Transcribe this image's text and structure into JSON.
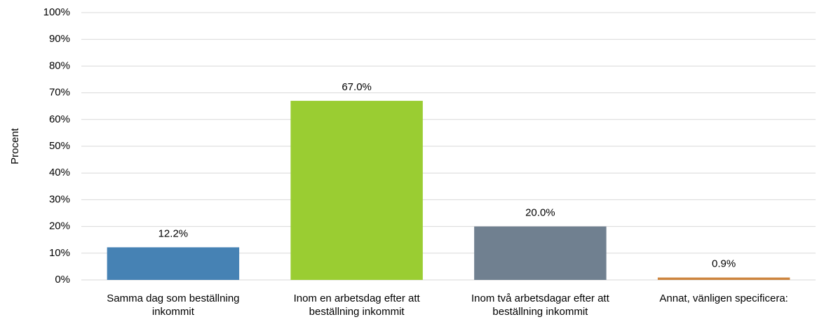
{
  "chart_data": {
    "type": "bar",
    "y_label": "Procent",
    "categories": [
      "Samma dag som beställning inkommit",
      "Inom en arbetsdag efter att beställning inkommit",
      "Inom två arbetsdagar efter att beställning inkommit",
      "Annat, vänligen specificera:"
    ],
    "values": [
      12.2,
      67.0,
      20.0,
      0.9
    ],
    "value_labels": [
      "12.2%",
      "67.0%",
      "20.0%",
      "0.9%"
    ],
    "colors": [
      "#4682b4",
      "#9acd32",
      "#708090",
      "#cd853f"
    ],
    "ylim": [
      0,
      100
    ],
    "yticks": [
      {
        "value": 0,
        "label": "0%"
      },
      {
        "value": 10,
        "label": "10%"
      },
      {
        "value": 20,
        "label": "20%"
      },
      {
        "value": 30,
        "label": "30%"
      },
      {
        "value": 40,
        "label": "40%"
      },
      {
        "value": 50,
        "label": "50%"
      },
      {
        "value": 60,
        "label": "60%"
      },
      {
        "value": 70,
        "label": "70%"
      },
      {
        "value": 80,
        "label": "80%"
      },
      {
        "value": 90,
        "label": "90%"
      },
      {
        "value": 100,
        "label": "100%"
      }
    ],
    "grid": true
  }
}
